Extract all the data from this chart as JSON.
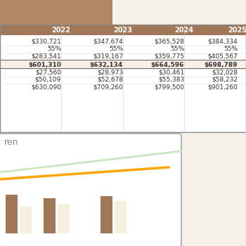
{
  "header_bg": "#a07858",
  "header_text_color": "#ffffff",
  "years": [
    "2022",
    "2023",
    "2024",
    "2025"
  ],
  "rows": [
    [
      "$330,721",
      "$347,674",
      "$365,528",
      "$384,334"
    ],
    [
      "55%",
      "55%",
      "55%",
      "55%"
    ],
    [
      "$283,541",
      "$319,167",
      "$359,775",
      "$405,567"
    ],
    [
      "$601,310",
      "$632,134",
      "$664,596",
      "$698,789"
    ],
    [
      "$27,560",
      "$28,973",
      "$30,461",
      "$32,028"
    ],
    [
      "$50,109",
      "$52,678",
      "$55,383",
      "$58,232"
    ],
    [
      "$630,090",
      "$709,260",
      "$799,500",
      "$901,260"
    ]
  ],
  "bold_row": 3,
  "top_rect_color": "#b08868",
  "chart_border_color": "#999999",
  "chart_bg": "#ffffff",
  "label_text": "ren",
  "label_color": "#888888",
  "line1_color": "#c8e6c0",
  "line2_color": "#ffa500",
  "bar_colors": [
    "#a07858",
    "#f5f0e0",
    "#a07858",
    "#f5f0e0",
    "#a07858",
    "#f5f0e0"
  ],
  "table_border_color": "#888888",
  "bold_row_border": "#666666",
  "bg_color": "#f5f0e8"
}
